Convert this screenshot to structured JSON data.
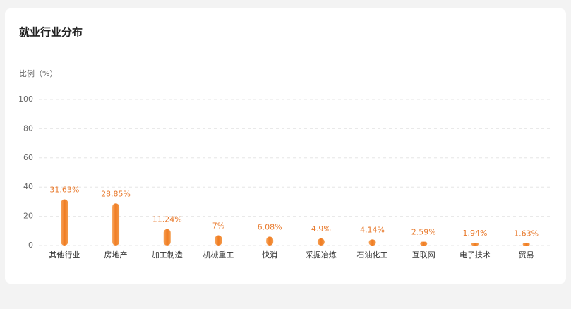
{
  "chart_data": {
    "type": "bar",
    "title": "就业行业分布",
    "y_label": "比例（%）",
    "categories": [
      "其他行业",
      "房地产",
      "加工制造",
      "机械重工",
      "快消",
      "采掘冶炼",
      "石油化工",
      "互联网",
      "电子技术",
      "贸易"
    ],
    "values": [
      31.63,
      28.85,
      11.24,
      7,
      6.08,
      4.9,
      4.14,
      2.59,
      1.94,
      1.63
    ],
    "value_labels": [
      "31.63%",
      "28.85%",
      "11.24%",
      "7%",
      "6.08%",
      "4.9%",
      "4.14%",
      "2.59%",
      "1.94%",
      "1.63%"
    ],
    "color": "#f07c22",
    "ylim": [
      0,
      100
    ],
    "yticks": [
      0,
      20,
      40,
      60,
      80,
      100
    ],
    "grid": true
  }
}
